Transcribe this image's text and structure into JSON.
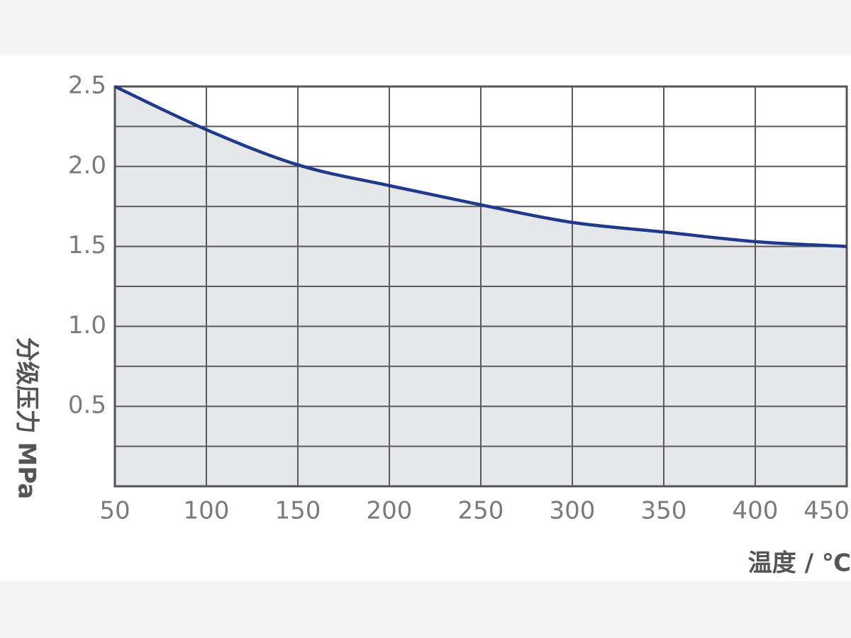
{
  "chart_data": {
    "type": "area",
    "x": [
      50,
      100,
      150,
      200,
      250,
      300,
      350,
      400,
      450
    ],
    "values": [
      2.5,
      2.23,
      2.01,
      1.88,
      1.76,
      1.65,
      1.59,
      1.53,
      1.5
    ],
    "color": "#1f3a8a",
    "fill": "#e6e7eb",
    "xlabel": "温度 / ℃",
    "ylabel": "分级压力 MPa",
    "xlim": [
      50,
      450
    ],
    "xticks": [
      50,
      100,
      150,
      200,
      250,
      300,
      350,
      400,
      450
    ],
    "ylim": [
      0,
      2.5
    ],
    "yticks": [
      {
        "value": 0.5,
        "label": "0.5"
      },
      {
        "value": 1,
        "label": "1.0"
      },
      {
        "value": 1.5,
        "label": "1.5"
      },
      {
        "value": 2,
        "label": "2.0"
      },
      {
        "value": 2.5,
        "label": "2.5"
      }
    ],
    "minor_yticks": [
      0.25,
      0.75,
      1.25,
      1.75,
      2.25
    ],
    "grid": true
  }
}
